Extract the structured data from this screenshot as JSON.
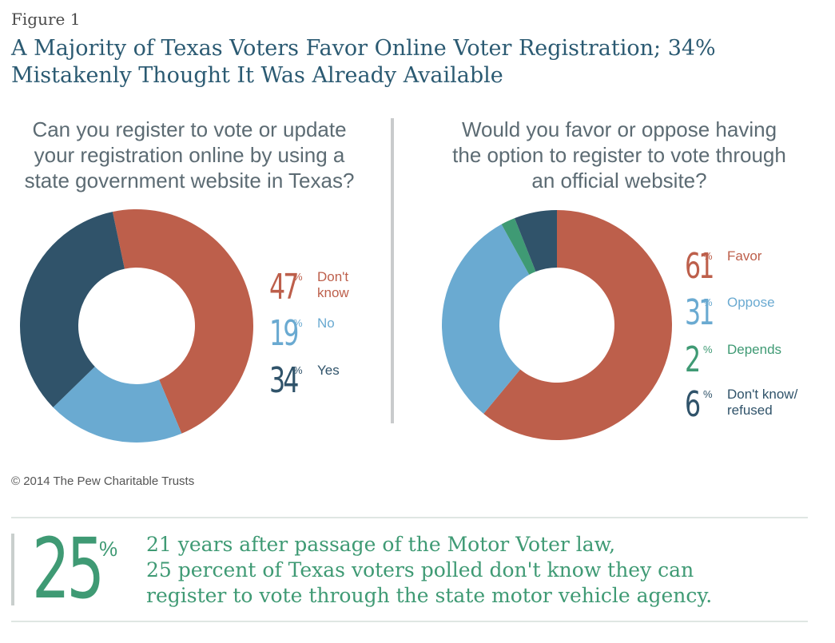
{
  "figure_label": "Figure 1",
  "title_lines": [
    "A Majority of Texas Voters Favor Online Voter Registration; 34%",
    "Mistakenly Thought It Was Already Available"
  ],
  "colors": {
    "rust": "#bd5f4b",
    "light_blue": "#6aaad1",
    "dark_blue": "#30536a",
    "green": "#3f9a74",
    "divider": "#c9cbcc"
  },
  "chart_data": [
    {
      "type": "pie",
      "title": "Can you register to vote or update your registration online by using a state government website in Texas?",
      "title_lines": [
        "Can you register to vote or update",
        "your registration online by using a",
        "state government website in Texas?"
      ],
      "slices": [
        {
          "label_lines": [
            "Don't",
            "know"
          ],
          "value": 47,
          "color": "#bd5f4b"
        },
        {
          "label_lines": [
            "No"
          ],
          "value": 19,
          "color": "#6aaad1"
        },
        {
          "label_lines": [
            "Yes"
          ],
          "value": 34,
          "color": "#30536a"
        }
      ],
      "unit": "%"
    },
    {
      "type": "pie",
      "title": "Would you favor or oppose having the option to register to vote through an official website?",
      "title_lines": [
        "Would you favor or oppose having",
        "the option to register to vote through",
        "an official website?"
      ],
      "slices": [
        {
          "label_lines": [
            "Favor"
          ],
          "value": 61,
          "color": "#bd5f4b"
        },
        {
          "label_lines": [
            "Oppose"
          ],
          "value": 31,
          "color": "#6aaad1"
        },
        {
          "label_lines": [
            "Depends"
          ],
          "value": 2,
          "color": "#3f9a74"
        },
        {
          "label_lines": [
            "Don't know/",
            "refused"
          ],
          "value": 6,
          "color": "#30536a"
        }
      ],
      "unit": "%"
    }
  ],
  "copyright": "© 2014 The Pew Charitable Trusts",
  "callout": {
    "number": "25",
    "unit": "%",
    "lines": [
      "21 years after passage of the Motor Voter law,",
      "25 percent of Texas voters polled don't know they can",
      "register to vote through the state motor vehicle agency."
    ]
  }
}
